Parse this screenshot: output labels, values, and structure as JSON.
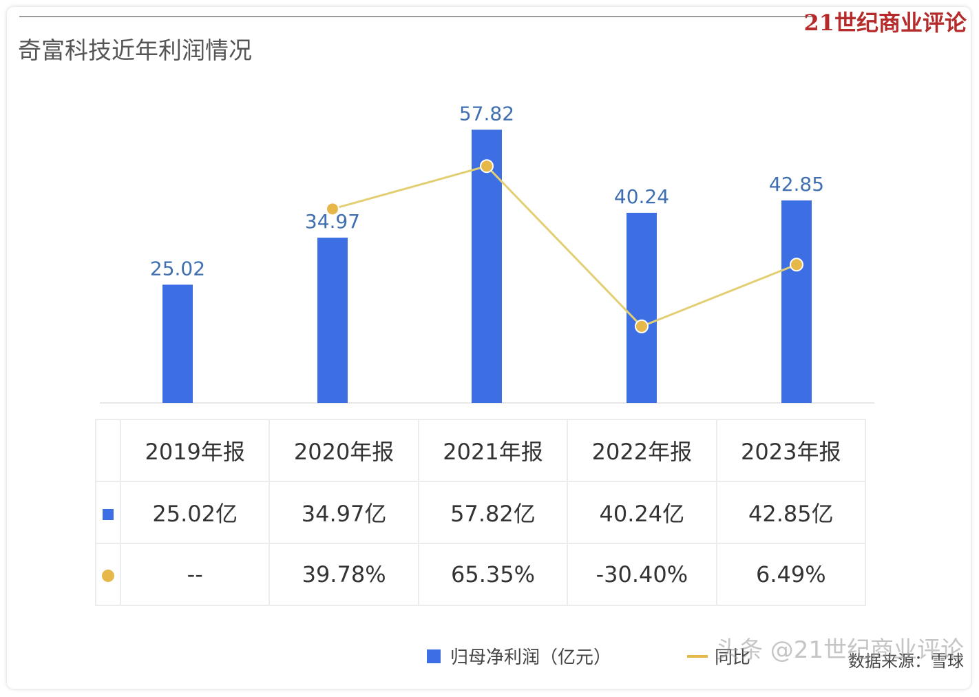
{
  "brand": "21世纪商业评论",
  "watermark": "头条 @21世纪商业评论",
  "chart_data": {
    "type": "bar",
    "title": "奇富科技近年利润情况",
    "categories": [
      "2019年报",
      "2020年报",
      "2021年报",
      "2022年报",
      "2023年报"
    ],
    "series": [
      {
        "name": "归母净利润（亿元）",
        "type": "bar",
        "values": [
          25.02,
          34.97,
          57.82,
          40.24,
          42.85
        ],
        "labels": [
          "25.02",
          "34.97",
          "57.82",
          "40.24",
          "42.85"
        ],
        "table_labels": [
          "25.02亿",
          "34.97亿",
          "57.82亿",
          "40.24亿",
          "42.85亿"
        ],
        "color": "#3d6ee3"
      },
      {
        "name": "同比",
        "type": "line",
        "values": [
          null,
          39.78,
          65.35,
          -30.4,
          6.49
        ],
        "table_labels": [
          "--",
          "39.78%",
          "65.35%",
          "-30.40%",
          "6.49%"
        ],
        "color": "#e6b84a"
      }
    ],
    "ylim": [
      0,
      60
    ],
    "legend": "bottom",
    "source": "数据来源：雪球"
  }
}
